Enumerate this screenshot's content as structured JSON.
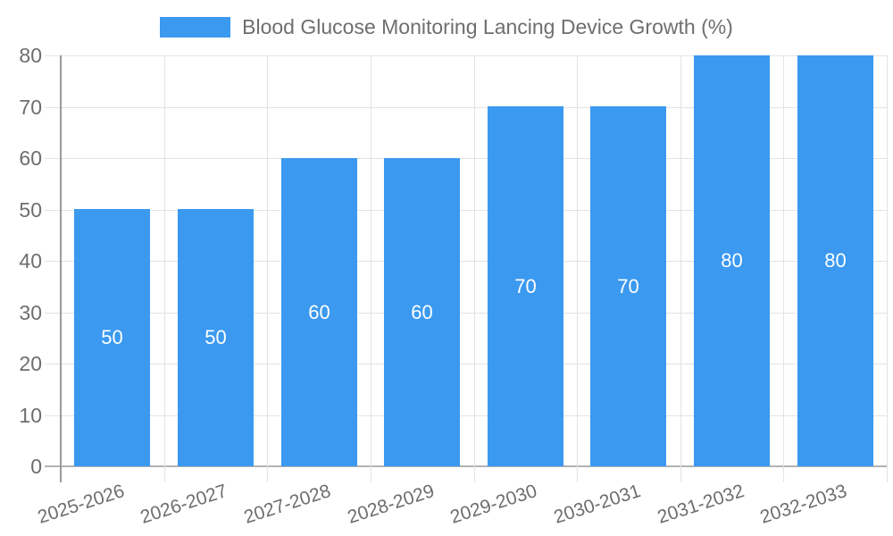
{
  "legend": {
    "label": "Blood Glucose Monitoring Lancing Device Growth (%)"
  },
  "chart_data": {
    "type": "bar",
    "title": "Blood Glucose Monitoring Lancing Device Growth (%)",
    "categories": [
      "2025-2026",
      "2026-2027",
      "2027-2028",
      "2028-2029",
      "2029-2030",
      "2030-2031",
      "2031-2032",
      "2032-2033"
    ],
    "values": [
      50,
      50,
      60,
      60,
      70,
      70,
      80,
      80
    ],
    "value_labels": [
      "50",
      "50",
      "60",
      "60",
      "70",
      "70",
      "80",
      "80"
    ],
    "xlabel": "",
    "ylabel": "",
    "ylim": [
      0,
      80
    ],
    "ytick_step": 10,
    "ytick_labels": [
      "0",
      "10",
      "20",
      "30",
      "40",
      "50",
      "60",
      "70",
      "80"
    ],
    "grid": true,
    "legend_position": "top-center",
    "x_label_rotation_deg": -18,
    "colors": {
      "bar": "#3b99f0",
      "value_label": "#ffffff",
      "axis_text": "#6e6e6e",
      "legend_text": "#6e6e6e",
      "gridline": "#e3e3e3",
      "baseline": "#b3b3b3",
      "y_axis_line": "#9a9a9a",
      "background": "#ffffff"
    }
  }
}
